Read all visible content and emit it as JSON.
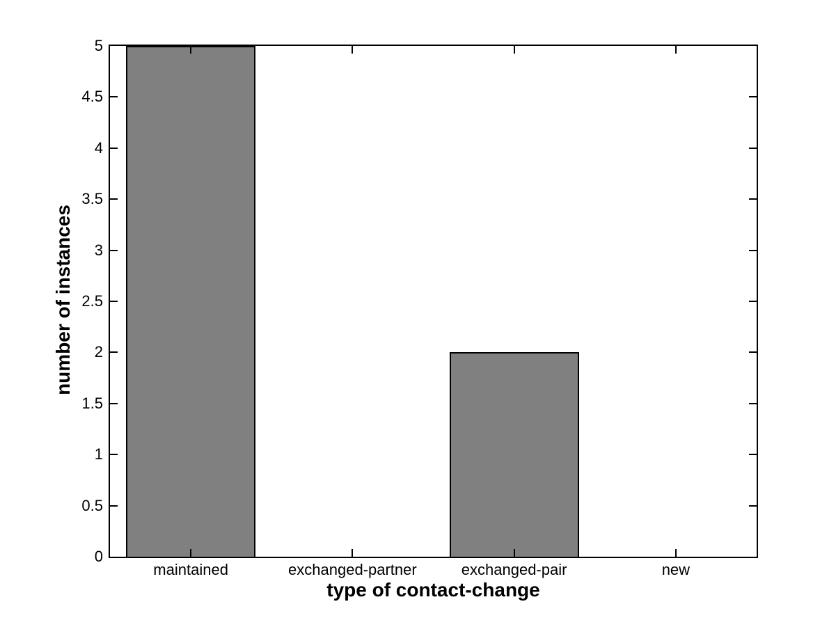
{
  "colors": {
    "bar_fill": "#808080",
    "bar_edge": "#000000",
    "axis": "#000000",
    "text": "#000000",
    "background": "#ffffff"
  },
  "chart_data": {
    "type": "bar",
    "categories": [
      "maintained",
      "exchanged-partner",
      "exchanged-pair",
      "new"
    ],
    "values": [
      5,
      0,
      2,
      0
    ],
    "title": "",
    "xlabel": "type of contact-change",
    "ylabel": "number of instances",
    "ylim": [
      0,
      5
    ],
    "yticks": [
      0,
      0.5,
      1,
      1.5,
      2,
      2.5,
      3,
      3.5,
      4,
      4.5,
      5
    ],
    "bar_width_fraction": 0.8,
    "grid": false,
    "legend": null,
    "box": true,
    "tick_direction": "in"
  }
}
